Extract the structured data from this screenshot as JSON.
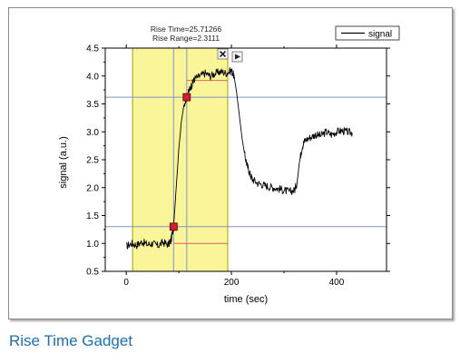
{
  "caption": "Rise Time Gadget",
  "chart_data": {
    "type": "line",
    "xlabel": "time (sec)",
    "ylabel": "signal (a.u.)",
    "xlim": [
      -40,
      495
    ],
    "ylim": [
      0.5,
      4.5
    ],
    "xticks": [
      0,
      200,
      400
    ],
    "yticks": [
      0.5,
      1.0,
      1.5,
      2.0,
      2.5,
      3.0,
      3.5,
      4.0,
      4.5
    ],
    "ytick_labels": [
      "0.5",
      "1.0",
      "1.5",
      "2.0",
      "2.5",
      "3.0",
      "3.5",
      "4.0",
      "4.5"
    ],
    "grid": false,
    "legend": {
      "position": "top-right",
      "entries": [
        "signal"
      ]
    },
    "series": [
      {
        "name": "signal",
        "color": "#000000",
        "x": [
          0,
          10,
          20,
          30,
          40,
          50,
          60,
          70,
          80,
          85,
          90,
          95,
          100,
          105,
          110,
          115,
          120,
          125,
          130,
          140,
          150,
          160,
          170,
          180,
          190,
          200,
          205,
          210,
          215,
          220,
          225,
          230,
          235,
          240,
          250,
          260,
          270,
          280,
          290,
          300,
          310,
          320,
          325,
          330,
          335,
          340,
          350,
          360,
          370,
          380,
          390,
          400,
          410,
          420,
          430
        ],
        "y": [
          0.95,
          1.0,
          0.97,
          1.03,
          0.98,
          1.0,
          0.96,
          1.02,
          0.98,
          1.05,
          1.3,
          2.0,
          2.7,
          3.2,
          3.5,
          3.62,
          3.75,
          3.85,
          3.95,
          4.0,
          4.05,
          4.0,
          4.05,
          4.08,
          4.05,
          4.1,
          4.0,
          3.7,
          3.3,
          2.9,
          2.6,
          2.4,
          2.25,
          2.15,
          2.08,
          2.05,
          2.02,
          2.0,
          1.98,
          1.95,
          1.93,
          1.95,
          2.1,
          2.5,
          2.75,
          2.85,
          2.9,
          2.95,
          2.93,
          3.0,
          2.95,
          3.0,
          3.02,
          3.0,
          2.98
        ]
      }
    ],
    "gadget": {
      "title_line1": "Rise Time=25.71266",
      "title_line2": "Rise Range=2.3111",
      "x_from": 12,
      "x_to": 193,
      "low_level": 1.3,
      "high_level": 3.62,
      "base_level": 1.0,
      "top_level": 3.92,
      "low_x": 90,
      "high_x": 115,
      "fill_color": "#fbf59a",
      "border_color": "#a0a000",
      "level_color": "#7f95c9",
      "ref_color": "#e06060",
      "marker_color": "#cc2030"
    }
  }
}
